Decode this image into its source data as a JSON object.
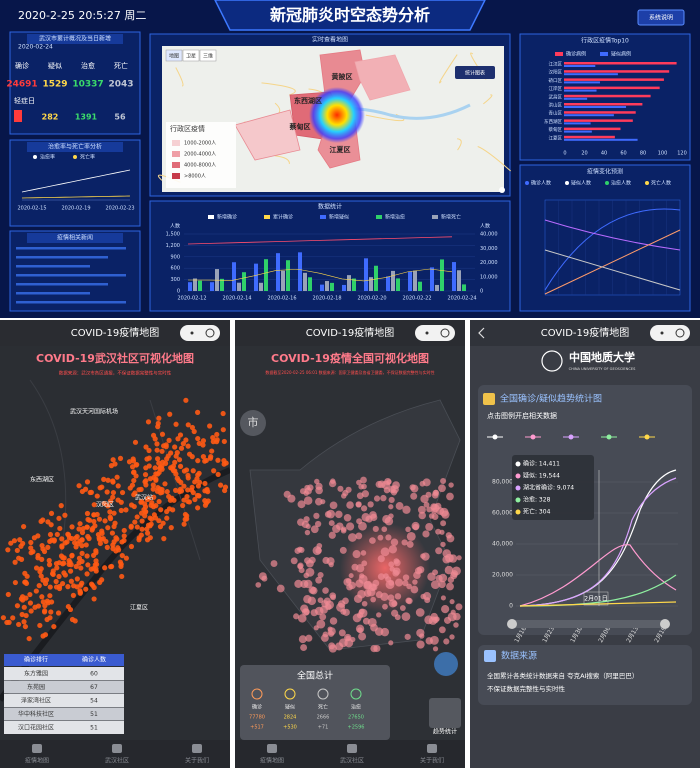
{
  "dashboard": {
    "datetime": "2020-2-25 20:5:27 周二",
    "title": "新冠肺炎时空态势分析",
    "button": "系统说明",
    "stats": {
      "title": "武汉市累计概况及当日新增",
      "date": "2020-02-24",
      "labels": [
        "确诊",
        "疑似",
        "治愈",
        "死亡"
      ],
      "totals": [
        "24691",
        "1529",
        "10337",
        "2043"
      ],
      "sub_label": "轻症日",
      "new": [
        "282",
        "1391",
        "56"
      ]
    },
    "trend": {
      "title": "治愈率与死亡率分析",
      "legend": [
        "治愈率",
        "死亡率"
      ],
      "dates": [
        "2020-02-15",
        "2020-02-19",
        "2020-02-23"
      ]
    },
    "news": {
      "title": "疫情相关新闻"
    },
    "map": {
      "title": "实时查看地图",
      "tabs": [
        "地图",
        "卫星",
        "三维"
      ],
      "button": "统计图表",
      "legend_title": "行政区疫情",
      "legend": [
        "1000-2000人",
        "2000-4000人",
        "4000-8000人",
        ">8000人"
      ],
      "districts": [
        "黄陂区",
        "东西湖区",
        "蔡甸区",
        "江夏区"
      ]
    },
    "bars": {
      "title": "数据统计",
      "legend": [
        "新增确诊",
        "累计确诊",
        "新增疑似",
        "新增治愈",
        "新增死亡"
      ],
      "unit": "人数",
      "left_ticks": [
        "1,500",
        "1,200",
        "900",
        "600",
        "300",
        "0"
      ],
      "right_ticks": [
        "40,000",
        "30,000",
        "20,000",
        "10,000",
        "0"
      ],
      "dates": [
        "2020-02-12",
        "2020-02-14",
        "2020-02-16",
        "2020-02-18",
        "2020-02-20",
        "2020-02-22",
        "2020-02-24"
      ]
    },
    "top10": {
      "title": "行政区疫情Top10",
      "legend": [
        "确诊病例",
        "疑似病例"
      ],
      "categories": [
        "江汉区",
        "汉阳区",
        "硚口区",
        "江岸区",
        "武昌区",
        "洪山区",
        "青山区",
        "东西湖区",
        "蔡甸区",
        "江夏区"
      ],
      "ticks": [
        "0",
        "20",
        "40",
        "60",
        "80",
        "100",
        "120"
      ]
    },
    "predict": {
      "title": "疫情变化预测",
      "legend": [
        "确诊人数",
        "疑似人数",
        "治愈人数",
        "死亡人数"
      ]
    }
  },
  "phone1": {
    "app": "COVID-19疫情地图",
    "headline": "COVID-19武汉社区可视化地图",
    "note": "数据来源：武汉市各区通报，不保证数据完整性与实时性",
    "places": [
      "武汉天河国际机场",
      "东西湖区",
      "武汉站",
      "汉阳区",
      "江夏区"
    ],
    "table": {
      "header": [
        "确诊排行",
        "确诊人数"
      ],
      "rows": [
        [
          "东方雅园",
          "60"
        ],
        [
          "东苑园",
          "67"
        ],
        [
          "泽家湾社区",
          "54"
        ],
        [
          "华中科技社区",
          "51"
        ],
        [
          "汉口花园社区",
          "51"
        ]
      ]
    },
    "tabs": [
      "疫情地图",
      "武汉社区",
      "关于我们"
    ]
  },
  "phone2": {
    "app": "COVID-19疫情地图",
    "headline": "COVID-19疫情全国可视化地图",
    "note": "数据截至2020-02-25 06:01  数据来源：国家卫健委及各省卫健委，不保证数据完整性与实时性",
    "city_button": "市",
    "total": {
      "title": "全国总计",
      "labels": [
        "确诊",
        "疑似",
        "死亡",
        "治愈"
      ],
      "values": [
        "77780",
        "2824",
        "2666",
        "27650"
      ],
      "deltas": [
        "+517",
        "+530",
        "+71",
        "+2596"
      ]
    },
    "trend_button": "趋势统计",
    "tabs": [
      "疫情地图",
      "武汉社区",
      "关于我们"
    ]
  },
  "phone3": {
    "app": "COVID-19疫情地图",
    "school": "中国地质大学",
    "school_en": "CHINA UNIVERSITY OF GEOSCIENCES",
    "chart_title": "全国确诊/疑似趋势统计图",
    "hint": "点击图例开启相关数据",
    "legend": [
      "确诊",
      "疑似",
      "湖北省确诊",
      "治愈",
      "死亡"
    ],
    "yticks": [
      "80,000",
      "60,000",
      "40,000",
      "20,000",
      "0"
    ],
    "xticks": [
      "1月16日",
      "1月23日",
      "1月30日",
      "2月06日",
      "2月13日",
      "2月19日"
    ],
    "tooltip": {
      "date": "2月01日",
      "lines": [
        "确诊: 14,411",
        "疑似: 19,544",
        "湖北省确诊: 9,074",
        "治愈: 328",
        "死亡: 304"
      ]
    },
    "source_title": "数据来源",
    "source_lines": [
      "全国累计各类统计数据来自 夸克AI搜索（阿里巴巴）",
      "不保证数据完整性与实时性"
    ]
  }
}
